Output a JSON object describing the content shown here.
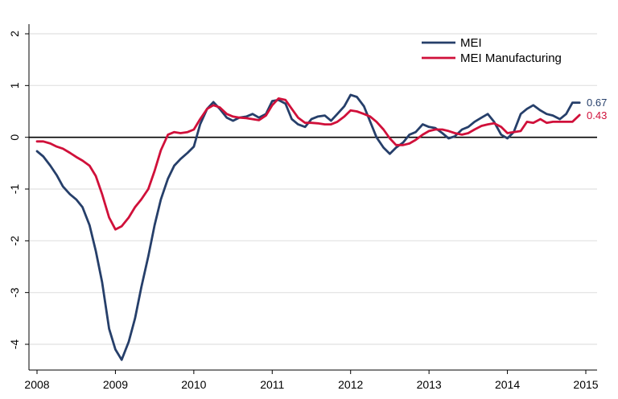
{
  "chart_data": {
    "type": "line",
    "title": "",
    "xlabel": "",
    "ylabel": "",
    "xlim": [
      2008,
      2015
    ],
    "ylim": [
      -4.2,
      2.1
    ],
    "x_ticks": [
      2008,
      2009,
      2010,
      2011,
      2012,
      2013,
      2014,
      2015
    ],
    "y_ticks": [
      2,
      1,
      0,
      -1,
      -2,
      -3,
      -4
    ],
    "grid": true,
    "zero_line": true,
    "legend_position": "top-right",
    "series": [
      {
        "name": "MEI",
        "color": "#263F6A",
        "end_label": "0.67",
        "x": [
          2008.0,
          2008.08,
          2008.17,
          2008.25,
          2008.33,
          2008.42,
          2008.5,
          2008.58,
          2008.67,
          2008.75,
          2008.83,
          2008.92,
          2009.0,
          2009.08,
          2009.17,
          2009.25,
          2009.33,
          2009.42,
          2009.5,
          2009.58,
          2009.67,
          2009.75,
          2009.83,
          2009.92,
          2010.0,
          2010.08,
          2010.17,
          2010.25,
          2010.33,
          2010.42,
          2010.5,
          2010.58,
          2010.67,
          2010.75,
          2010.83,
          2010.92,
          2011.0,
          2011.08,
          2011.17,
          2011.25,
          2011.33,
          2011.42,
          2011.5,
          2011.58,
          2011.67,
          2011.75,
          2011.83,
          2011.92,
          2012.0,
          2012.08,
          2012.17,
          2012.25,
          2012.33,
          2012.42,
          2012.5,
          2012.58,
          2012.67,
          2012.75,
          2012.83,
          2012.92,
          2013.0,
          2013.08,
          2013.17,
          2013.25,
          2013.33,
          2013.42,
          2013.5,
          2013.58,
          2013.67,
          2013.75,
          2013.83,
          2013.92,
          2014.0,
          2014.08,
          2014.17,
          2014.25,
          2014.33,
          2014.42,
          2014.5,
          2014.58,
          2014.67,
          2014.75,
          2014.83,
          2014.92
        ],
        "values": [
          -0.27,
          -0.37,
          -0.55,
          -0.73,
          -0.95,
          -1.1,
          -1.2,
          -1.35,
          -1.7,
          -2.2,
          -2.8,
          -3.7,
          -4.1,
          -4.3,
          -3.95,
          -3.5,
          -2.9,
          -2.3,
          -1.7,
          -1.2,
          -0.8,
          -0.55,
          -0.42,
          -0.3,
          -0.18,
          0.25,
          0.55,
          0.68,
          0.55,
          0.38,
          0.32,
          0.38,
          0.4,
          0.45,
          0.38,
          0.45,
          0.7,
          0.72,
          0.65,
          0.35,
          0.25,
          0.2,
          0.35,
          0.4,
          0.42,
          0.32,
          0.45,
          0.6,
          0.82,
          0.78,
          0.6,
          0.3,
          0.0,
          -0.2,
          -0.32,
          -0.2,
          -0.1,
          0.05,
          0.1,
          0.25,
          0.2,
          0.18,
          0.08,
          -0.02,
          0.02,
          0.15,
          0.2,
          0.3,
          0.38,
          0.45,
          0.3,
          0.05,
          -0.02,
          0.1,
          0.45,
          0.55,
          0.62,
          0.52,
          0.45,
          0.42,
          0.35,
          0.45,
          0.67,
          0.67
        ]
      },
      {
        "name": "MEI Manufacturing",
        "color": "#D0103A",
        "end_label": "0.43",
        "x": [
          2008.0,
          2008.08,
          2008.17,
          2008.25,
          2008.33,
          2008.42,
          2008.5,
          2008.58,
          2008.67,
          2008.75,
          2008.83,
          2008.92,
          2009.0,
          2009.08,
          2009.17,
          2009.25,
          2009.33,
          2009.42,
          2009.5,
          2009.58,
          2009.67,
          2009.75,
          2009.83,
          2009.92,
          2010.0,
          2010.08,
          2010.17,
          2010.25,
          2010.33,
          2010.42,
          2010.5,
          2010.58,
          2010.67,
          2010.75,
          2010.83,
          2010.92,
          2011.0,
          2011.08,
          2011.17,
          2011.25,
          2011.33,
          2011.42,
          2011.5,
          2011.58,
          2011.67,
          2011.75,
          2011.83,
          2011.92,
          2012.0,
          2012.08,
          2012.17,
          2012.25,
          2012.33,
          2012.42,
          2012.5,
          2012.58,
          2012.67,
          2012.75,
          2012.83,
          2012.92,
          2013.0,
          2013.08,
          2013.17,
          2013.25,
          2013.33,
          2013.42,
          2013.5,
          2013.58,
          2013.67,
          2013.75,
          2013.83,
          2013.92,
          2014.0,
          2014.08,
          2014.17,
          2014.25,
          2014.33,
          2014.42,
          2014.5,
          2014.58,
          2014.67,
          2014.75,
          2014.83,
          2014.92
        ],
        "values": [
          -0.08,
          -0.08,
          -0.12,
          -0.18,
          -0.22,
          -0.3,
          -0.38,
          -0.45,
          -0.55,
          -0.75,
          -1.1,
          -1.55,
          -1.78,
          -1.72,
          -1.55,
          -1.35,
          -1.2,
          -1.0,
          -0.65,
          -0.25,
          0.05,
          0.1,
          0.08,
          0.1,
          0.15,
          0.35,
          0.55,
          0.62,
          0.58,
          0.45,
          0.4,
          0.38,
          0.37,
          0.35,
          0.33,
          0.42,
          0.62,
          0.75,
          0.72,
          0.55,
          0.38,
          0.28,
          0.28,
          0.27,
          0.25,
          0.25,
          0.3,
          0.4,
          0.52,
          0.5,
          0.45,
          0.4,
          0.3,
          0.15,
          -0.02,
          -0.15,
          -0.15,
          -0.12,
          -0.05,
          0.05,
          0.12,
          0.15,
          0.15,
          0.12,
          0.08,
          0.05,
          0.08,
          0.15,
          0.22,
          0.25,
          0.27,
          0.2,
          0.08,
          0.1,
          0.12,
          0.3,
          0.28,
          0.35,
          0.28,
          0.3,
          0.3,
          0.3,
          0.3,
          0.43
        ]
      }
    ]
  }
}
